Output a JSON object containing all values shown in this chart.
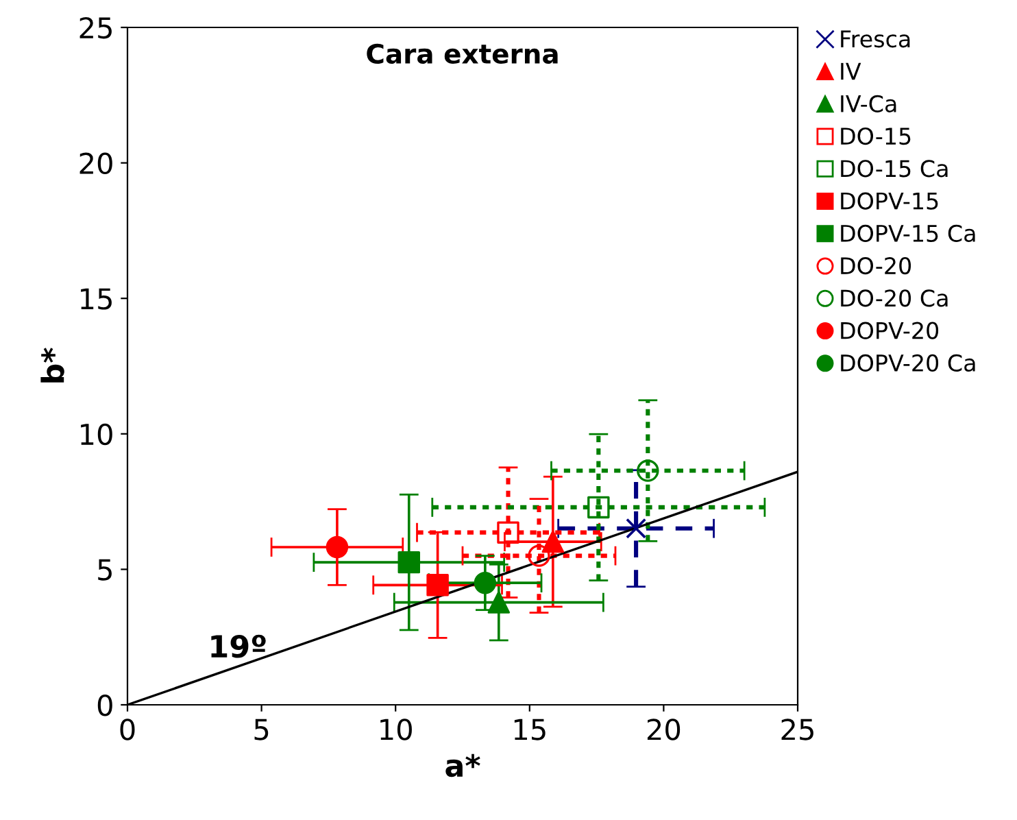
{
  "chart_data": {
    "type": "scatter",
    "title": "Cara externa",
    "xlabel": "a*",
    "ylabel": "b*",
    "xlim": [
      0,
      25
    ],
    "ylim": [
      0,
      25
    ],
    "xticks": [
      0,
      5,
      10,
      15,
      20,
      25
    ],
    "yticks": [
      0,
      5,
      10,
      15,
      20,
      25
    ],
    "grid": false,
    "legend": "right",
    "annotations": [
      "19º"
    ],
    "series": [
      {
        "name": "Fresca",
        "color": "#000080",
        "marker": "cross",
        "x": [
          18.97
        ],
        "values": [
          6.51
        ],
        "xerrors": [
          2.9
        ],
        "errors": [
          2.15
        ],
        "line_style": "dashed"
      },
      {
        "name": "IV",
        "color": "#ff0000",
        "marker": "triangle",
        "x": [
          15.87
        ],
        "values": [
          6.02
        ],
        "xerrors": [
          1.8
        ],
        "errors": [
          2.4
        ],
        "line_style": "solid"
      },
      {
        "name": "IV-Ca",
        "color": "#008000",
        "marker": "triangle",
        "x": [
          13.85
        ],
        "values": [
          3.78
        ],
        "xerrors": [
          3.9
        ],
        "errors": [
          1.4
        ],
        "line_style": "solid"
      },
      {
        "name": "DO-15",
        "color": "#ff0000",
        "marker": "square",
        "x": [
          14.2
        ],
        "values": [
          6.36
        ],
        "xerrors": [
          3.4
        ],
        "errors": [
          2.4
        ],
        "line_style": "dotted"
      },
      {
        "name": "DO-15 Ca",
        "color": "#008000",
        "marker": "square",
        "x": [
          17.57
        ],
        "values": [
          7.29
        ],
        "xerrors": [
          6.2
        ],
        "errors": [
          2.7
        ],
        "line_style": "dotted"
      },
      {
        "name": "DOPV-15",
        "color": "#ff0000",
        "marker": "square",
        "x": [
          11.57
        ],
        "values": [
          4.42
        ],
        "xerrors": [
          2.4
        ],
        "errors": [
          1.95
        ],
        "line_style": "solid"
      },
      {
        "name": "DOPV-15 Ca",
        "color": "#008000",
        "marker": "square",
        "x": [
          10.5
        ],
        "values": [
          5.26
        ],
        "xerrors": [
          3.55
        ],
        "errors": [
          2.5
        ],
        "line_style": "solid"
      },
      {
        "name": "DO-20",
        "color": "#ff0000",
        "marker": "circle",
        "x": [
          15.35
        ],
        "values": [
          5.5
        ],
        "xerrors": [
          2.85
        ],
        "errors": [
          2.1
        ],
        "line_style": "dotted"
      },
      {
        "name": "DO-20 Ca",
        "color": "#008000",
        "marker": "circle",
        "x": [
          19.41
        ],
        "values": [
          8.64
        ],
        "xerrors": [
          3.6
        ],
        "errors": [
          2.6
        ],
        "line_style": "dotted"
      },
      {
        "name": "DOPV-20",
        "color": "#ff0000",
        "marker": "circle",
        "x": [
          7.82
        ],
        "values": [
          5.82
        ],
        "xerrors": [
          2.45
        ],
        "errors": [
          1.4
        ],
        "line_style": "solid"
      },
      {
        "name": "DOPV-20 Ca",
        "color": "#008000",
        "marker": "circle",
        "x": [
          13.34
        ],
        "values": [
          4.5
        ],
        "xerrors": [
          2.1
        ],
        "errors": [
          1.0
        ],
        "line_style": "solid"
      },
      {
        "type": "line",
        "color": "#000000",
        "marker": "none",
        "x": [
          0,
          25
        ],
        "values": [
          0,
          8.6
        ],
        "line_style": "solid"
      }
    ]
  }
}
